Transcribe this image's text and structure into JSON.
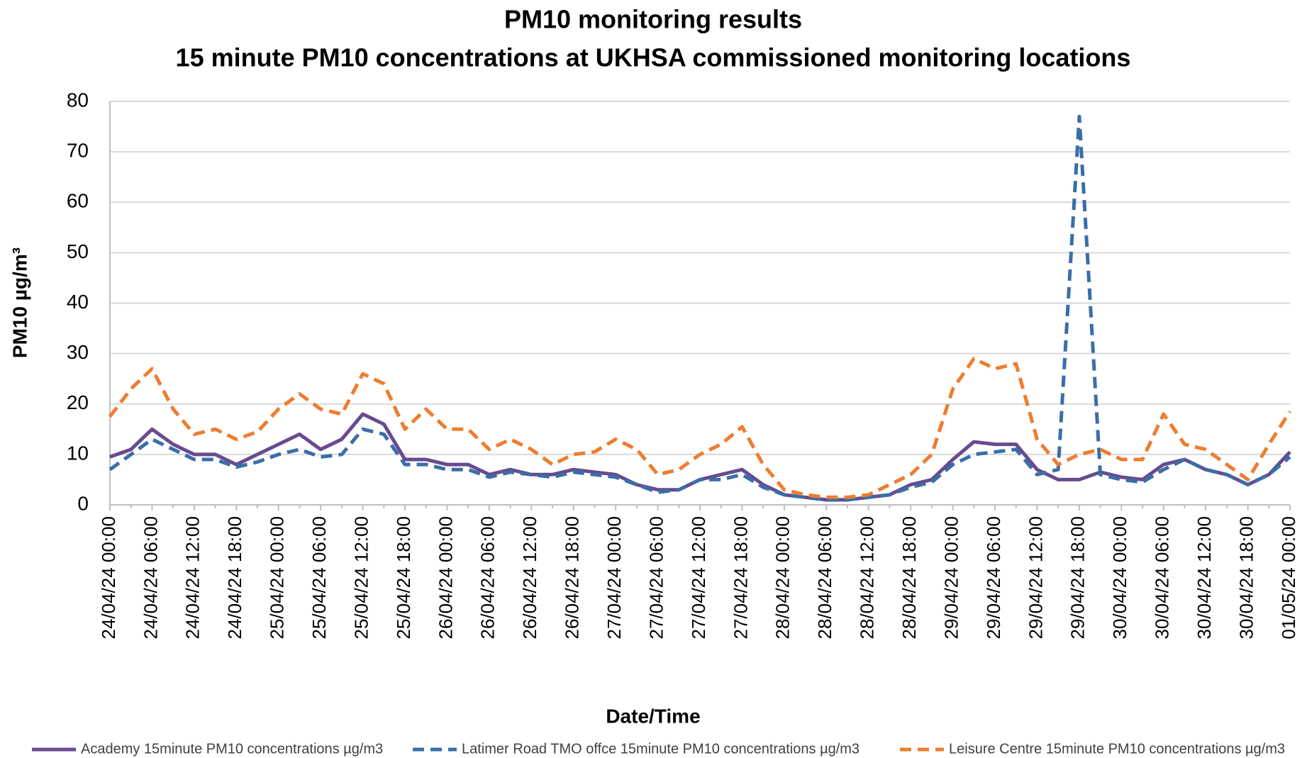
{
  "chart_data": {
    "type": "line",
    "title": "PM10 monitoring results",
    "subtitle": "15 minute PM10 concentrations at UKHSA commissioned monitoring locations",
    "x_label": "Date/Time",
    "y_label": "PM10 µg/m³",
    "x": [
      "24/04/24 00:00",
      "24/04/24 03:00",
      "24/04/24 06:00",
      "24/04/24 09:00",
      "24/04/24 12:00",
      "24/04/24 15:00",
      "24/04/24 18:00",
      "24/04/24 21:00",
      "25/04/24 00:00",
      "25/04/24 03:00",
      "25/04/24 06:00",
      "25/04/24 09:00",
      "25/04/24 12:00",
      "25/04/24 15:00",
      "25/04/24 18:00",
      "25/04/24 21:00",
      "26/04/24 00:00",
      "26/04/24 03:00",
      "26/04/24 06:00",
      "26/04/24 09:00",
      "26/04/24 12:00",
      "26/04/24 15:00",
      "26/04/24 18:00",
      "26/04/24 21:00",
      "27/04/24 00:00",
      "27/04/24 03:00",
      "27/04/24 06:00",
      "27/04/24 09:00",
      "27/04/24 12:00",
      "27/04/24 15:00",
      "27/04/24 18:00",
      "27/04/24 21:00",
      "28/04/24 00:00",
      "28/04/24 03:00",
      "28/04/24 06:00",
      "28/04/24 09:00",
      "28/04/24 12:00",
      "28/04/24 15:00",
      "28/04/24 18:00",
      "28/04/24 21:00",
      "29/04/24 00:00",
      "29/04/24 03:00",
      "29/04/24 06:00",
      "29/04/24 09:00",
      "29/04/24 12:00",
      "29/04/24 15:00",
      "29/04/24 18:00",
      "29/04/24 21:00",
      "30/04/24 00:00",
      "30/04/24 03:00",
      "30/04/24 06:00",
      "30/04/24 09:00",
      "30/04/24 12:00",
      "30/04/24 15:00",
      "30/04/24 18:00",
      "30/04/24 21:00",
      "01/05/24 00:00"
    ],
    "series": [
      {
        "name": "Academy 15minute PM10 concentrations µg/m3",
        "color": "#674b8f",
        "dashed": false,
        "values": [
          9.5,
          11,
          15,
          12,
          10,
          10,
          8,
          10,
          12,
          14,
          11,
          13,
          18,
          16,
          9,
          9,
          8,
          8,
          6,
          7,
          6,
          6,
          7,
          6.5,
          6,
          4,
          3,
          3,
          5,
          6,
          7,
          4,
          2,
          1.5,
          1,
          1,
          1.5,
          2,
          4,
          5,
          9,
          12.5,
          12,
          12,
          7,
          5,
          5,
          6.5,
          5.5,
          5,
          8,
          9,
          7,
          6,
          4,
          6,
          10.5
        ]
      },
      {
        "name": "Latimer Road TMO offce 15minute PM10 concentrations µg/m3",
        "color": "#3a6ea8",
        "dashed": true,
        "values": [
          7,
          10,
          13,
          11,
          9,
          9,
          7.5,
          8.5,
          10,
          11,
          9.5,
          10,
          15,
          14,
          8,
          8,
          7,
          7,
          5.5,
          6.5,
          6,
          5.5,
          6.5,
          6,
          5.5,
          4,
          2.5,
          3,
          5,
          5,
          6,
          3.5,
          2,
          1.5,
          1,
          1,
          1.5,
          2,
          3.5,
          4.5,
          8,
          10,
          10.5,
          11,
          6,
          7,
          77,
          6,
          5,
          4.5,
          7,
          9,
          7,
          6,
          4,
          6,
          9.5
        ]
      },
      {
        "name": "Leisure Centre 15minute PM10 concentrations µg/m3",
        "color": "#ed7d31",
        "dashed": true,
        "values": [
          17.5,
          23,
          27,
          19,
          14,
          15,
          13,
          14.5,
          19,
          22,
          19,
          18,
          26,
          24,
          15,
          19,
          15,
          15,
          11,
          13,
          11,
          8,
          10,
          10.5,
          13,
          11,
          6,
          7,
          10,
          12,
          15.5,
          8,
          3,
          2,
          1.5,
          1.5,
          2,
          4,
          6,
          10,
          23,
          29,
          27,
          28,
          13,
          8,
          10,
          11,
          9,
          9,
          18,
          12,
          11,
          8,
          5,
          12,
          18.5
        ]
      }
    ],
    "ylim": [
      0,
      80
    ],
    "yticks": [
      0,
      10,
      20,
      30,
      40,
      50,
      60,
      70,
      80
    ],
    "grid": true,
    "legend": "bottom"
  }
}
